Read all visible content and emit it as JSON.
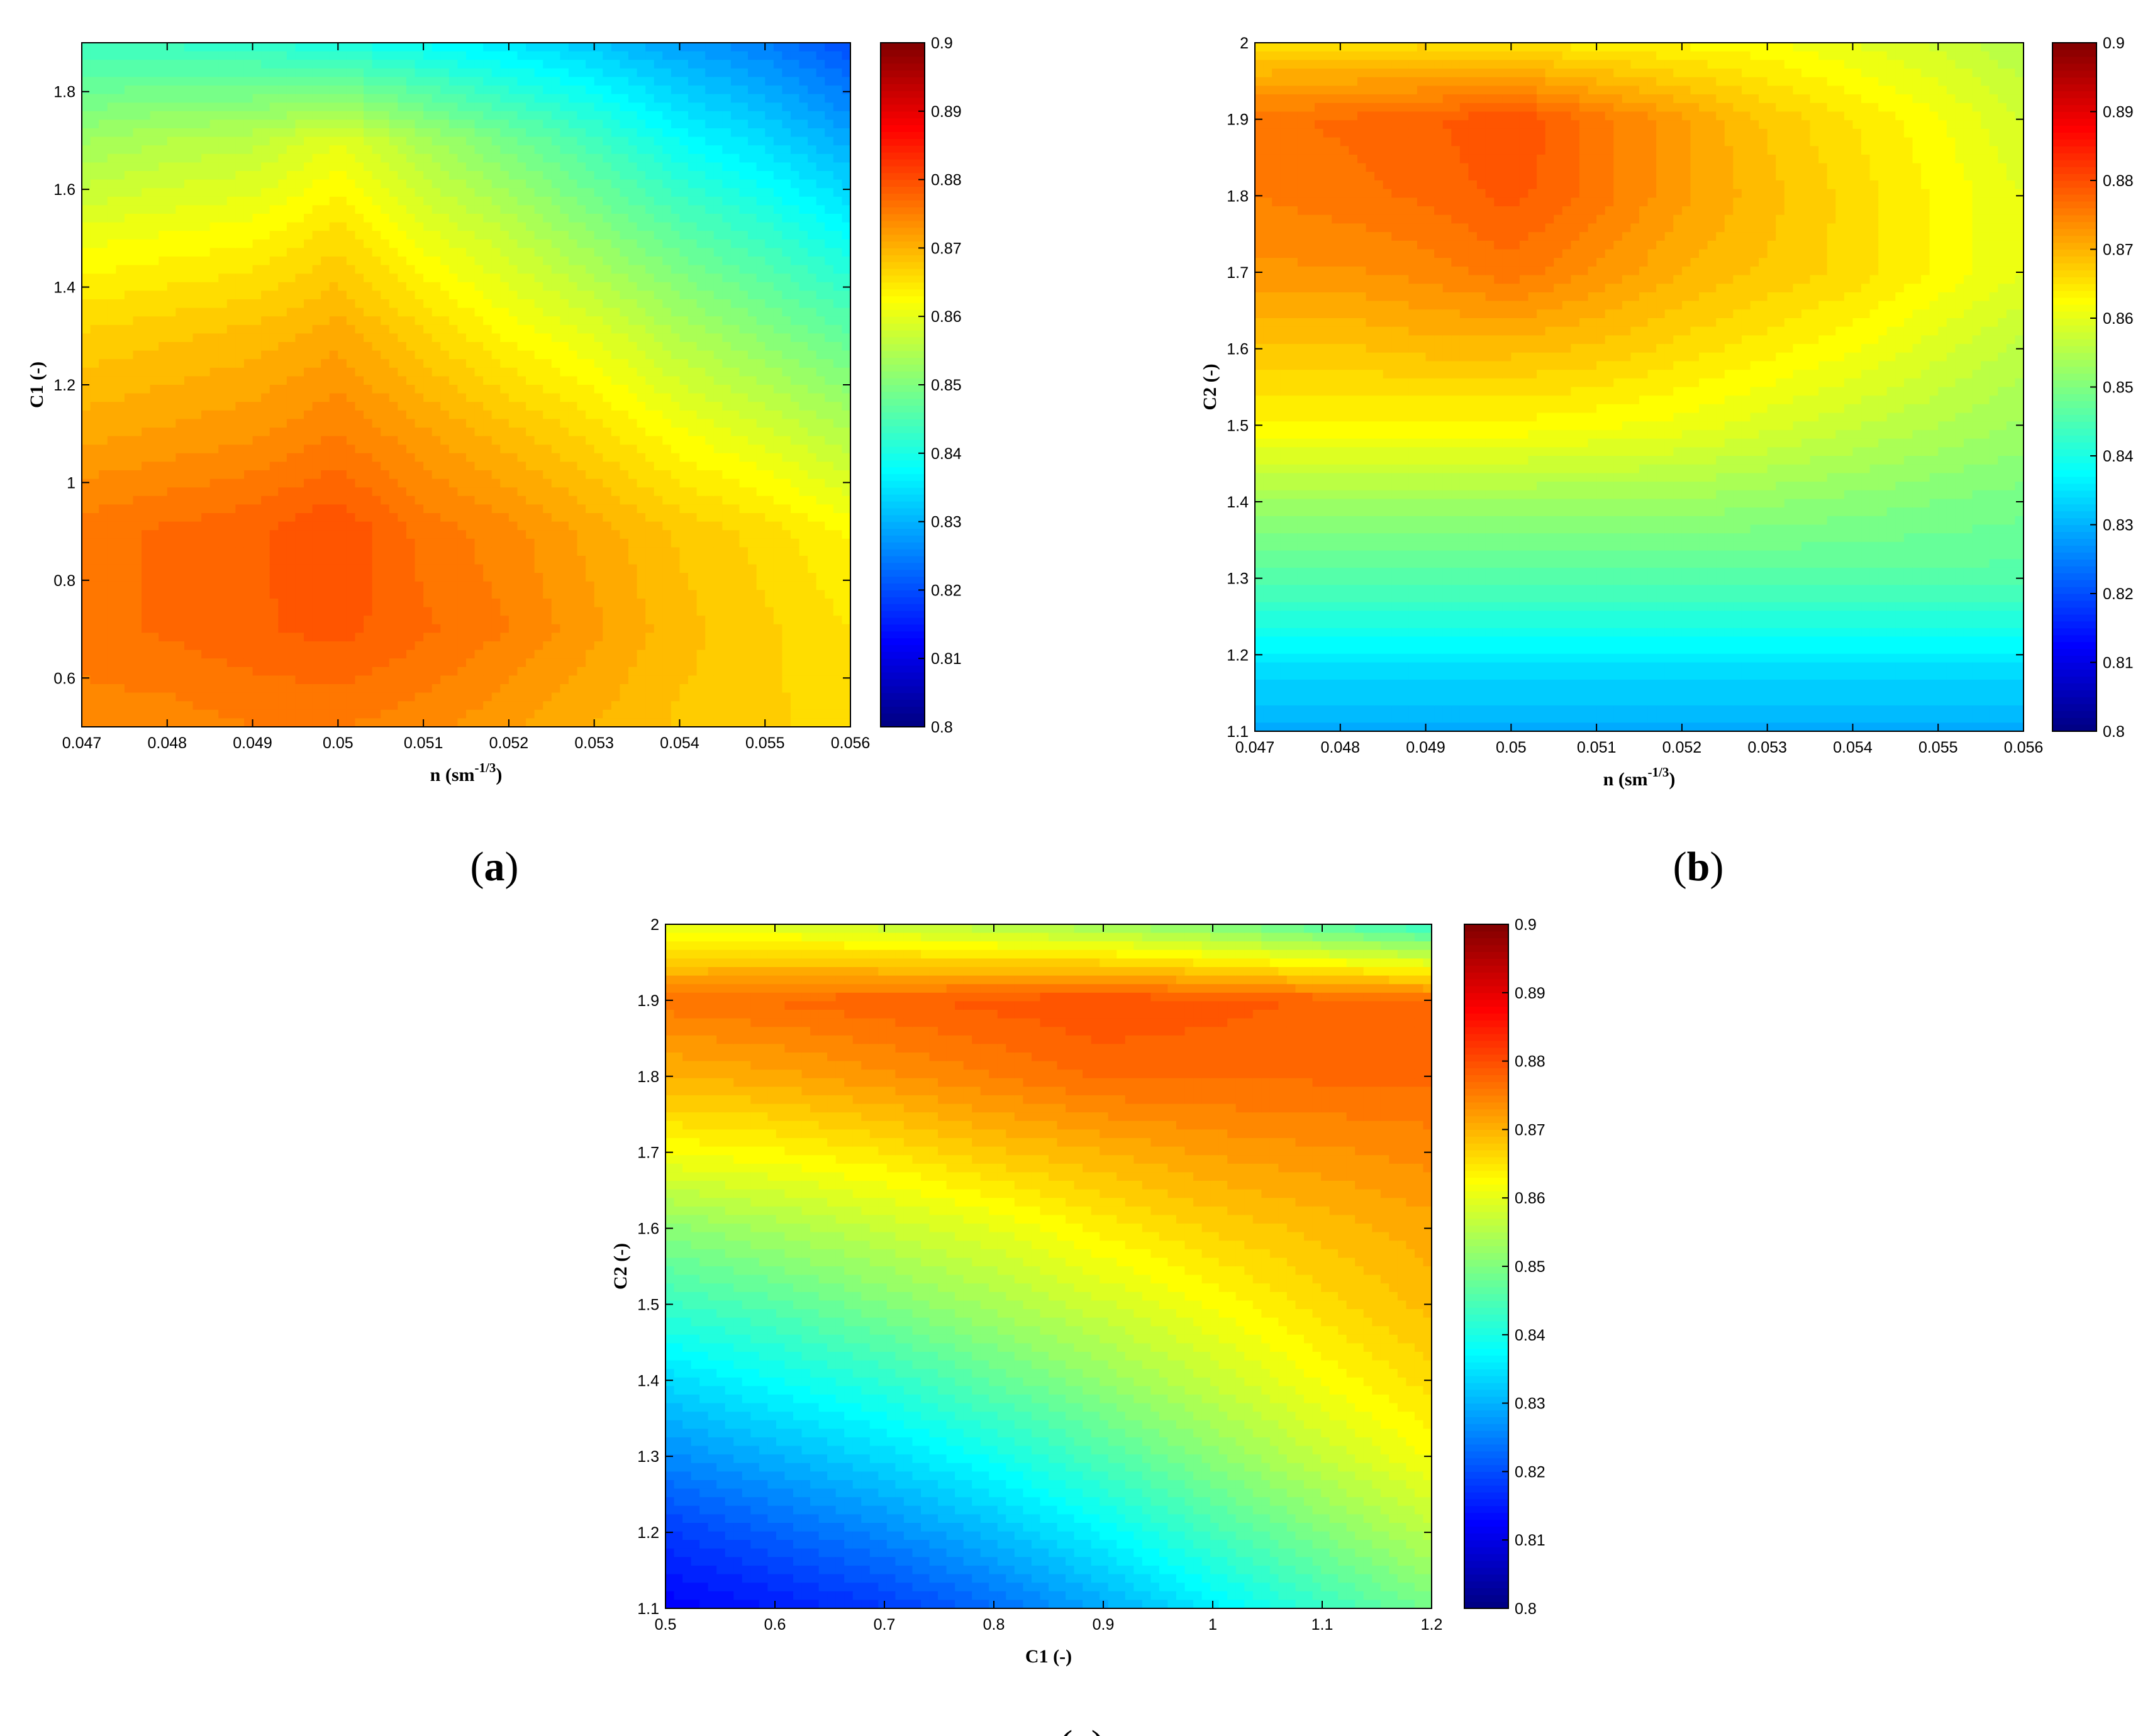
{
  "colormap": "jet",
  "color_ticks": [
    "0.8",
    "0.81",
    "0.82",
    "0.83",
    "0.84",
    "0.85",
    "0.86",
    "0.87",
    "0.88",
    "0.89",
    "0.9"
  ],
  "clim": [
    0.8,
    0.9
  ],
  "panels": [
    {
      "caption_letter": "a",
      "xlabel": "n (sm",
      "xlabel_sup": "-1/3",
      "xlabel_end": ")",
      "ylabel": "C1 (-)",
      "xticks": [
        "0.047",
        "0.048",
        "0.049",
        "0.05",
        "0.051",
        "0.052",
        "0.053",
        "0.054",
        "0.055",
        "0.056"
      ],
      "yticks": [
        "0.6",
        "0.8",
        "1",
        "1.2",
        "1.4",
        "1.6",
        "1.8"
      ]
    },
    {
      "caption_letter": "b",
      "xlabel": "n (sm",
      "xlabel_sup": "-1/3",
      "xlabel_end": ")",
      "ylabel": "C2 (-)",
      "xticks": [
        "0.047",
        "0.048",
        "0.049",
        "0.05",
        "0.051",
        "0.052",
        "0.053",
        "0.054",
        "0.055",
        "0.056"
      ],
      "yticks": [
        "1.1",
        "1.2",
        "1.3",
        "1.4",
        "1.5",
        "1.6",
        "1.7",
        "1.8",
        "1.9",
        "2"
      ]
    },
    {
      "caption_letter": "c",
      "xlabel": "C1 (-)",
      "xlabel_sup": "",
      "xlabel_end": "",
      "ylabel": "C2 (-)",
      "xticks": [
        "0.5",
        "0.6",
        "0.7",
        "0.8",
        "0.9",
        "1",
        "1.1",
        "1.2"
      ],
      "yticks": [
        "1.1",
        "1.2",
        "1.3",
        "1.4",
        "1.5",
        "1.6",
        "1.7",
        "1.8",
        "1.9",
        "2"
      ]
    }
  ],
  "chart_data": [
    {
      "type": "heatmap",
      "x": [
        0.047,
        0.048,
        0.049,
        0.05,
        0.051,
        0.052,
        0.053,
        0.054,
        0.055,
        0.056
      ],
      "y": [
        0.5,
        0.7,
        0.9,
        1.1,
        1.3,
        1.5,
        1.7,
        1.9
      ],
      "values": [
        [
          0.874,
          0.874,
          0.875,
          0.875,
          0.874,
          0.872,
          0.87,
          0.868,
          0.867,
          0.866
        ],
        [
          0.876,
          0.877,
          0.878,
          0.879,
          0.877,
          0.875,
          0.872,
          0.869,
          0.867,
          0.865
        ],
        [
          0.876,
          0.877,
          0.878,
          0.88,
          0.876,
          0.874,
          0.871,
          0.868,
          0.866,
          0.863
        ],
        [
          0.871,
          0.872,
          0.873,
          0.875,
          0.872,
          0.869,
          0.866,
          0.862,
          0.859,
          0.855
        ],
        [
          0.867,
          0.868,
          0.869,
          0.871,
          0.867,
          0.863,
          0.86,
          0.855,
          0.851,
          0.847
        ],
        [
          0.861,
          0.862,
          0.863,
          0.866,
          0.861,
          0.857,
          0.852,
          0.847,
          0.843,
          0.838
        ],
        [
          0.853,
          0.855,
          0.856,
          0.86,
          0.854,
          0.849,
          0.844,
          0.838,
          0.834,
          0.829
        ],
        [
          0.843,
          0.843,
          0.842,
          0.84,
          0.838,
          0.835,
          0.832,
          0.828,
          0.825,
          0.82
        ]
      ],
      "xlabel": "n (sm-1/3)",
      "ylabel": "C1 (-)",
      "xlim": [
        0.047,
        0.056
      ],
      "ylim": [
        0.5,
        1.9
      ]
    },
    {
      "type": "heatmap",
      "x": [
        0.047,
        0.048,
        0.049,
        0.05,
        0.051,
        0.052,
        0.053,
        0.054,
        0.055,
        0.056
      ],
      "y": [
        1.1,
        1.2,
        1.3,
        1.4,
        1.5,
        1.6,
        1.7,
        1.8,
        1.9,
        2.0
      ],
      "values": [
        [
          0.829,
          0.829,
          0.829,
          0.829,
          0.829,
          0.829,
          0.829,
          0.829,
          0.829,
          0.829
        ],
        [
          0.836,
          0.836,
          0.836,
          0.836,
          0.836,
          0.836,
          0.836,
          0.836,
          0.836,
          0.836
        ],
        [
          0.846,
          0.846,
          0.846,
          0.846,
          0.846,
          0.846,
          0.846,
          0.846,
          0.846,
          0.846
        ],
        [
          0.853,
          0.853,
          0.853,
          0.853,
          0.853,
          0.853,
          0.852,
          0.851,
          0.85,
          0.849
        ],
        [
          0.863,
          0.863,
          0.863,
          0.863,
          0.862,
          0.861,
          0.859,
          0.857,
          0.855,
          0.853
        ],
        [
          0.868,
          0.868,
          0.869,
          0.869,
          0.868,
          0.866,
          0.864,
          0.862,
          0.859,
          0.856
        ],
        [
          0.873,
          0.873,
          0.874,
          0.876,
          0.873,
          0.87,
          0.868,
          0.866,
          0.863,
          0.86
        ],
        [
          0.875,
          0.876,
          0.877,
          0.879,
          0.876,
          0.872,
          0.869,
          0.866,
          0.863,
          0.86
        ],
        [
          0.876,
          0.877,
          0.878,
          0.88,
          0.876,
          0.872,
          0.868,
          0.865,
          0.862,
          0.858
        ],
        [
          0.866,
          0.866,
          0.866,
          0.865,
          0.864,
          0.863,
          0.862,
          0.86,
          0.858,
          0.855
        ]
      ],
      "xlabel": "n (sm-1/3)",
      "ylabel": "C2 (-)",
      "xlim": [
        0.047,
        0.056
      ],
      "ylim": [
        1.1,
        2.0
      ]
    },
    {
      "type": "heatmap",
      "x": [
        0.5,
        0.6,
        0.7,
        0.8,
        0.9,
        1.0,
        1.1,
        1.2
      ],
      "y": [
        1.1,
        1.2,
        1.3,
        1.4,
        1.5,
        1.6,
        1.7,
        1.8,
        1.9,
        2.0
      ],
      "values": [
        [
          0.812,
          0.815,
          0.818,
          0.823,
          0.829,
          0.836,
          0.843,
          0.849
        ],
        [
          0.818,
          0.822,
          0.826,
          0.831,
          0.837,
          0.844,
          0.85,
          0.856
        ],
        [
          0.826,
          0.83,
          0.834,
          0.839,
          0.845,
          0.851,
          0.857,
          0.862
        ],
        [
          0.834,
          0.838,
          0.842,
          0.847,
          0.852,
          0.857,
          0.862,
          0.866
        ],
        [
          0.843,
          0.846,
          0.85,
          0.854,
          0.858,
          0.862,
          0.866,
          0.869
        ],
        [
          0.851,
          0.854,
          0.857,
          0.86,
          0.864,
          0.867,
          0.869,
          0.871
        ],
        [
          0.862,
          0.863,
          0.865,
          0.868,
          0.87,
          0.872,
          0.873,
          0.874
        ],
        [
          0.87,
          0.871,
          0.873,
          0.875,
          0.877,
          0.877,
          0.877,
          0.877
        ],
        [
          0.876,
          0.877,
          0.878,
          0.879,
          0.88,
          0.879,
          0.878,
          0.877
        ],
        [
          0.86,
          0.859,
          0.857,
          0.855,
          0.853,
          0.85,
          0.846,
          0.842
        ]
      ],
      "xlabel": "C1 (-)",
      "ylabel": "C2 (-)",
      "xlim": [
        0.5,
        1.2
      ],
      "ylim": [
        1.1,
        2.0
      ]
    }
  ]
}
